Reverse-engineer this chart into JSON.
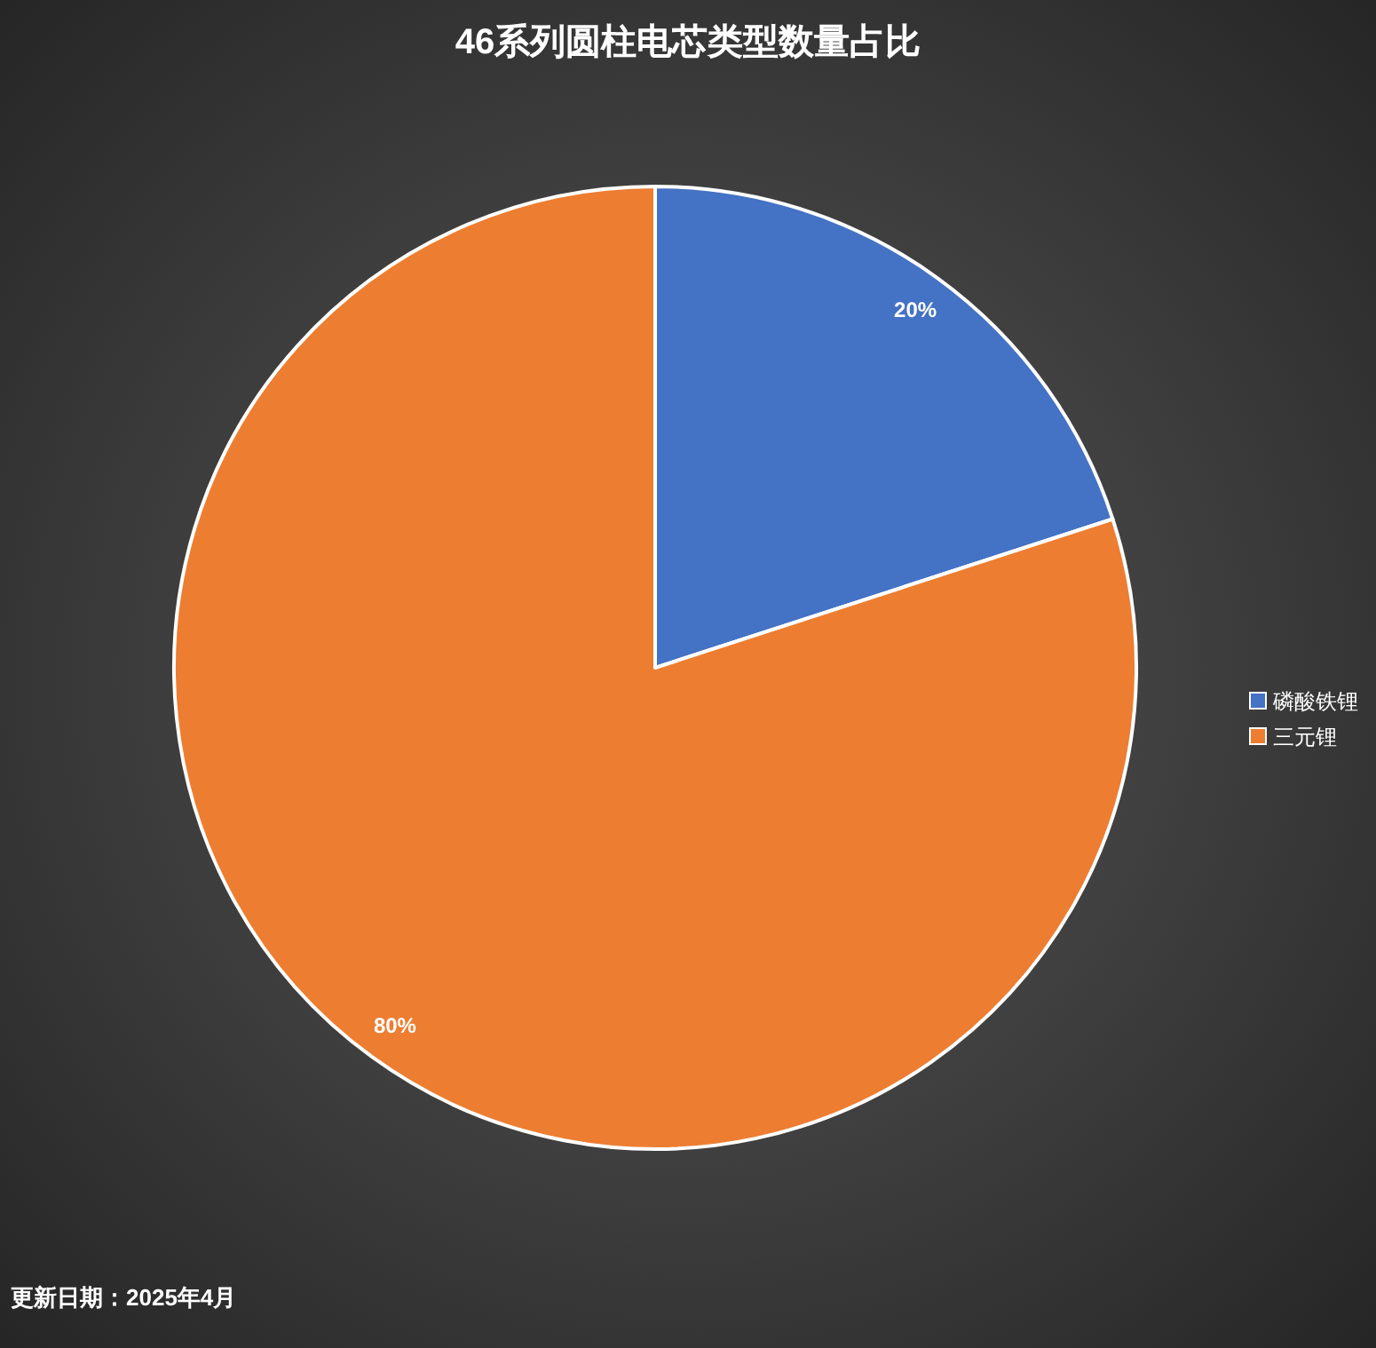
{
  "chart_data": {
    "type": "pie",
    "title": "46系列圆柱电芯类型数量占比",
    "categories": [
      "磷酸铁锂",
      "三元锂"
    ],
    "values": [
      20,
      80
    ],
    "colors": [
      "#4472c4",
      "#ed7d31"
    ],
    "value_labels": [
      "20%",
      "80%"
    ],
    "legend": "right",
    "annotations": [
      "更新日期：2025年4月"
    ]
  }
}
